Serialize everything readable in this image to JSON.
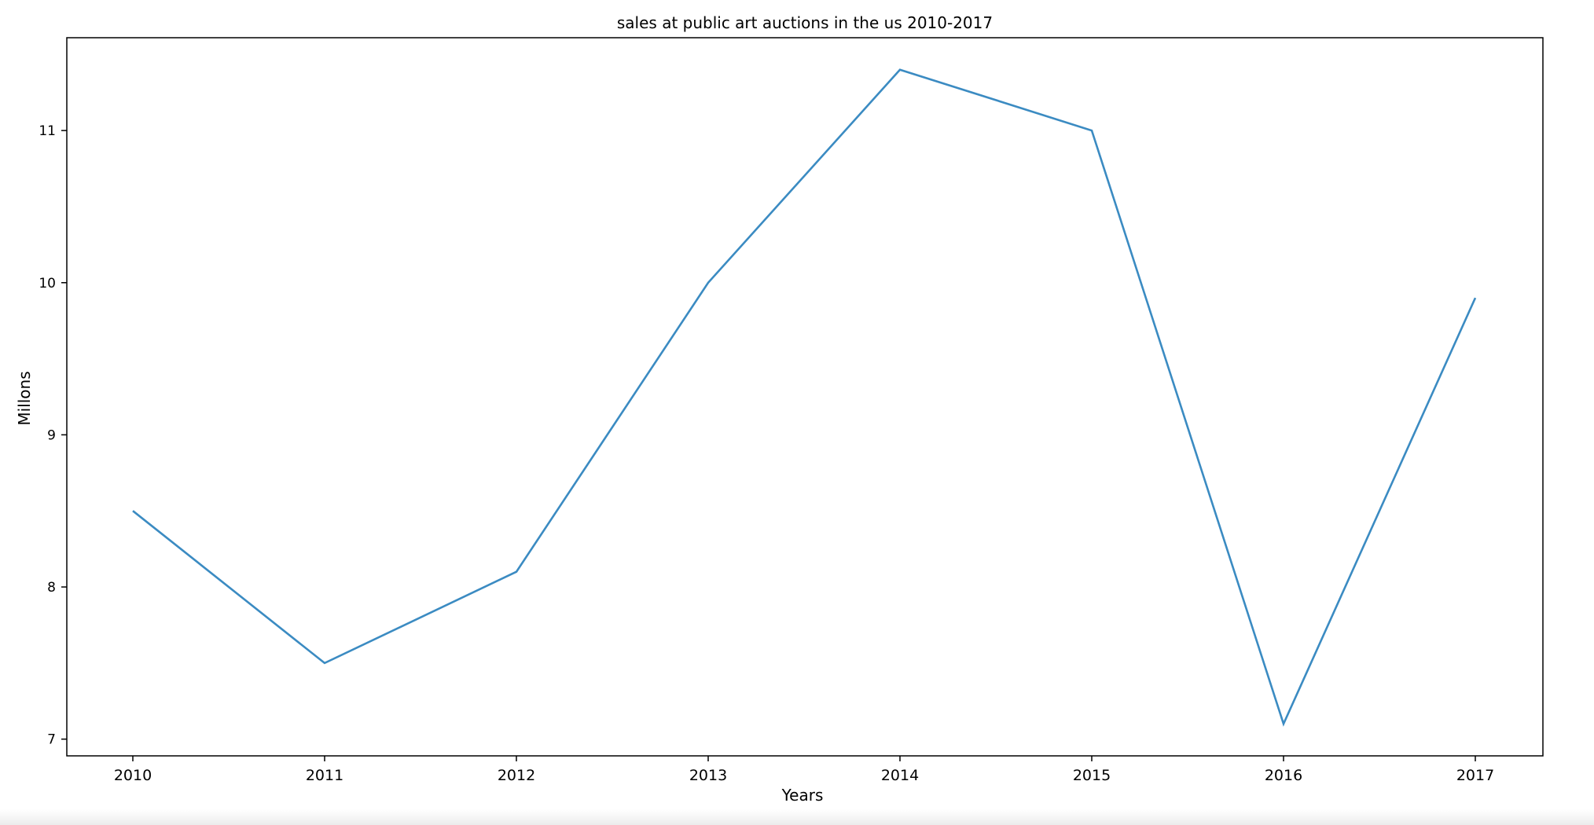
{
  "chart_data": {
    "type": "line",
    "title": "sales at public art auctions in the us 2010-2017",
    "xlabel": "Years",
    "ylabel": "Millons",
    "x": [
      "2010",
      "2011",
      "2012",
      "2013",
      "2014",
      "2015",
      "2016",
      "2017"
    ],
    "series": [
      {
        "values": [
          8.5,
          7.5,
          8.1,
          10.0,
          11.4,
          11.0,
          7.1,
          9.9
        ]
      }
    ],
    "ylim": [
      6.89,
      11.61
    ],
    "yticks": [
      7,
      8,
      9,
      10,
      11
    ],
    "grid": false,
    "legend": "none",
    "line_color": "#3b8bc2",
    "axes_color": "#000000"
  }
}
